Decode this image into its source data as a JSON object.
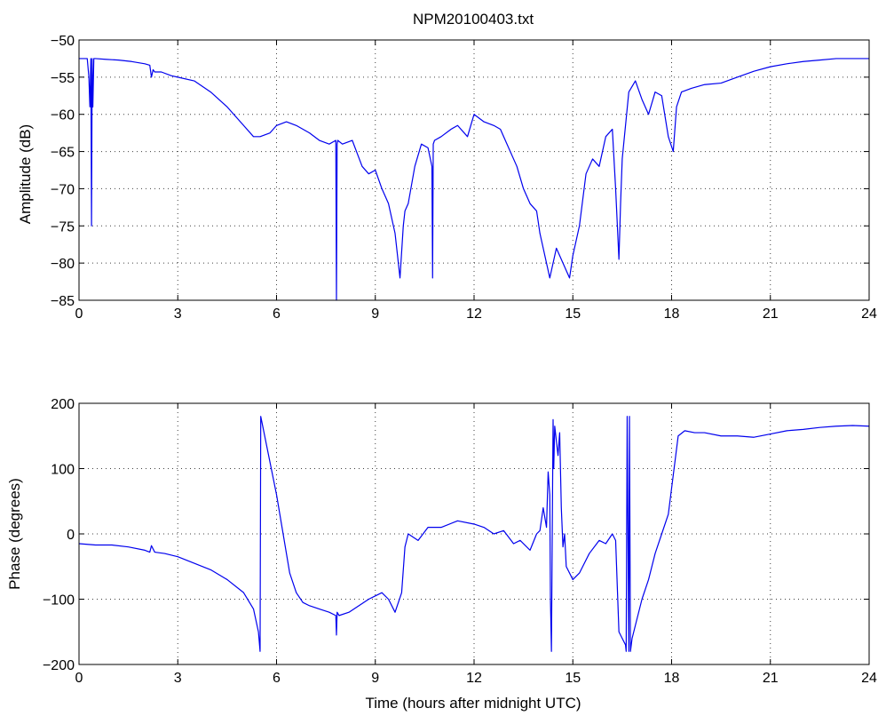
{
  "title": "NPM20100403.txt",
  "series_color": "#0000ee",
  "chart_data": [
    {
      "type": "line",
      "title": "NPM20100403.txt",
      "xlabel": "",
      "ylabel": "Amplitude (dB)",
      "xlim": [
        0,
        24
      ],
      "ylim": [
        -85,
        -50
      ],
      "xticks": [
        0,
        3,
        6,
        9,
        12,
        15,
        18,
        21,
        24
      ],
      "yticks": [
        -85,
        -80,
        -75,
        -70,
        -65,
        -60,
        -55,
        -50
      ],
      "grid": true,
      "series": [
        {
          "x": [
            0,
            0.25,
            0.3,
            0.33,
            0.36,
            0.38,
            0.4,
            0.42,
            0.45,
            0.5,
            0.8,
            1.2,
            1.6,
            2.0,
            2.15,
            2.2,
            2.25,
            2.3,
            2.5,
            2.8,
            3.0,
            3.5,
            4.0,
            4.5,
            5.0,
            5.3,
            5.5,
            5.8,
            6.0,
            6.3,
            6.6,
            7.0,
            7.3,
            7.6,
            7.8,
            7.82,
            7.84,
            7.86,
            8.0,
            8.3,
            8.6,
            8.8,
            9.0,
            9.2,
            9.4,
            9.6,
            9.75,
            9.85,
            9.9,
            10.0,
            10.2,
            10.4,
            10.6,
            10.72,
            10.74,
            10.76,
            10.8,
            11.0,
            11.3,
            11.5,
            11.8,
            12.0,
            12.3,
            12.6,
            12.8,
            13.0,
            13.3,
            13.5,
            13.7,
            13.9,
            14.0,
            14.2,
            14.3,
            14.5,
            14.7,
            14.9,
            15.0,
            15.2,
            15.4,
            15.6,
            15.8,
            16.0,
            16.2,
            16.3,
            16.4,
            16.45,
            16.5,
            16.7,
            16.9,
            17.1,
            17.3,
            17.5,
            17.7,
            17.9,
            18.05,
            18.15,
            18.3,
            18.6,
            19.0,
            19.5,
            20.0,
            20.5,
            21.0,
            21.5,
            22.0,
            22.5,
            23.0,
            23.5,
            24.0
          ],
          "y": [
            -52.5,
            -52.5,
            -55,
            -59,
            -52.5,
            -75,
            -52.5,
            -59,
            -52.5,
            -52.5,
            -52.6,
            -52.7,
            -52.9,
            -53.2,
            -53.4,
            -55,
            -54,
            -54.3,
            -54.3,
            -54.8,
            -55,
            -55.5,
            -57,
            -59,
            -61.5,
            -63,
            -63,
            -62.5,
            -61.5,
            -61,
            -61.5,
            -62.5,
            -63.5,
            -64,
            -63.5,
            -85,
            -64,
            -63.5,
            -64,
            -63.5,
            -67,
            -68,
            -67.5,
            -70,
            -72,
            -76,
            -82,
            -75,
            -73,
            -72,
            -67,
            -64,
            -64.5,
            -67,
            -82,
            -64,
            -63.5,
            -63,
            -62,
            -61.5,
            -63,
            -60,
            -61,
            -61.5,
            -62,
            -64,
            -67,
            -70,
            -72,
            -73,
            -76,
            -80,
            -82,
            -78,
            -80,
            -82,
            -79,
            -75,
            -68,
            -66,
            -67,
            -63,
            -62,
            -70,
            -79.5,
            -72,
            -66,
            -57,
            -55.5,
            -58,
            -60,
            -57,
            -57.5,
            -63,
            -65,
            -59,
            -57,
            -56.5,
            -56,
            -55.8,
            -55,
            -54.2,
            -53.6,
            -53.2,
            -52.9,
            -52.7,
            -52.5,
            -52.5,
            -52.5
          ]
        }
      ]
    },
    {
      "type": "line",
      "title": "",
      "xlabel": "Time (hours after midnight UTC)",
      "ylabel": "Phase (degrees)",
      "xlim": [
        0,
        24
      ],
      "ylim": [
        -200,
        200
      ],
      "xticks": [
        0,
        3,
        6,
        9,
        12,
        15,
        18,
        21,
        24
      ],
      "yticks": [
        -200,
        -100,
        0,
        100,
        200
      ],
      "grid": true,
      "series": [
        {
          "x": [
            0,
            0.5,
            1.0,
            1.5,
            2.0,
            2.15,
            2.2,
            2.3,
            2.6,
            3.0,
            3.5,
            4.0,
            4.5,
            5.0,
            5.3,
            5.45,
            5.5,
            5.52,
            5.6,
            5.8,
            6.0,
            6.2,
            6.4,
            6.6,
            6.8,
            7.0,
            7.3,
            7.6,
            7.8,
            7.82,
            7.84,
            7.9,
            8.2,
            8.5,
            8.8,
            9.0,
            9.2,
            9.4,
            9.6,
            9.7,
            9.8,
            9.9,
            10.0,
            10.3,
            10.6,
            11.0,
            11.5,
            12.0,
            12.3,
            12.6,
            12.9,
            13.2,
            13.4,
            13.7,
            13.9,
            14.0,
            14.1,
            14.2,
            14.25,
            14.3,
            14.32,
            14.35,
            14.38,
            14.4,
            14.42,
            14.45,
            14.55,
            14.6,
            14.65,
            14.7,
            14.75,
            14.8,
            15.0,
            15.2,
            15.5,
            15.8,
            16.0,
            16.2,
            16.3,
            16.35,
            16.4,
            16.5,
            16.6,
            16.62,
            16.65,
            16.7,
            16.72,
            16.75,
            16.8,
            16.9,
            17.1,
            17.3,
            17.5,
            17.7,
            17.9,
            18.0,
            18.1,
            18.2,
            18.4,
            18.7,
            19.0,
            19.5,
            20.0,
            20.5,
            21.0,
            21.5,
            22.0,
            22.5,
            23.0,
            23.5,
            24.0
          ],
          "y": [
            -15,
            -17,
            -17,
            -20,
            -25,
            -28,
            -18,
            -28,
            -30,
            -35,
            -45,
            -55,
            -70,
            -90,
            -115,
            -150,
            -180,
            180,
            160,
            110,
            60,
            0,
            -60,
            -90,
            -105,
            -110,
            -115,
            -120,
            -125,
            -155,
            -120,
            -125,
            -120,
            -110,
            -100,
            -95,
            -90,
            -100,
            -120,
            -105,
            -90,
            -20,
            0,
            -10,
            10,
            10,
            20,
            15,
            10,
            0,
            5,
            -15,
            -10,
            -25,
            0,
            5,
            40,
            10,
            95,
            60,
            -100,
            -180,
            40,
            175,
            100,
            165,
            120,
            155,
            40,
            -20,
            0,
            -50,
            -70,
            -60,
            -30,
            -10,
            -15,
            0,
            -10,
            -80,
            -150,
            -160,
            -170,
            -180,
            180,
            -180,
            180,
            -180,
            -160,
            -140,
            -100,
            -70,
            -30,
            0,
            30,
            70,
            110,
            150,
            158,
            155,
            155,
            150,
            150,
            148,
            153,
            158,
            160,
            163,
            165,
            166,
            165
          ]
        }
      ]
    }
  ]
}
